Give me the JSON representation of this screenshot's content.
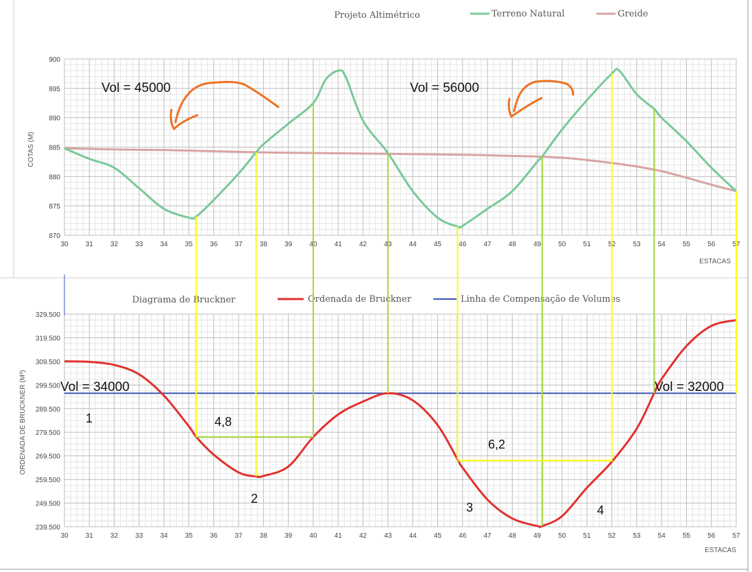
{
  "colors": {
    "terrain": "#79c89a",
    "greide": "#d9a3a3",
    "bruckner": "#e0312e",
    "compensation": "#3b55b5",
    "yellow": "#ffff00",
    "green_guide": "#a6d63a",
    "annotation_orange": "#f07020",
    "grid_major": "#bdbdbd",
    "grid_minor": "#e4e4e4"
  },
  "chart_data": [
    {
      "type": "line",
      "title": "Projeto Altimétrico",
      "xlabel": "ESTACAS",
      "ylabel": "COTAS (M)",
      "xlim": [
        30,
        57
      ],
      "ylim": [
        870,
        900
      ],
      "x_ticks": [
        "30",
        "31",
        "32",
        "33",
        "34",
        "35",
        "36",
        "37",
        "38",
        "39",
        "40",
        "41",
        "42",
        "43",
        "44",
        "45",
        "46",
        "47",
        "48",
        "49",
        "50",
        "51",
        "52",
        "53",
        "54",
        "55",
        "56",
        "57"
      ],
      "y_ticks": [
        "870",
        "875",
        "880",
        "885",
        "890",
        "895",
        "900"
      ],
      "legend_position": "top",
      "grid": true,
      "series": [
        {
          "name": "Terreno Natural",
          "x": [
            30,
            31,
            32,
            33,
            34,
            35,
            35.3,
            36,
            37,
            37.7,
            38,
            39,
            40,
            40.5,
            41,
            41.3,
            42,
            43,
            44,
            45,
            45.8,
            46,
            47,
            48,
            49,
            49.2,
            50,
            51,
            52,
            52.3,
            53,
            53.7,
            54,
            55,
            56,
            57
          ],
          "y": [
            884.8,
            883.0,
            881.5,
            878.0,
            874.5,
            873.0,
            873.2,
            876.0,
            880.5,
            884.1,
            885.5,
            889.0,
            892.5,
            896.5,
            898.0,
            897.0,
            889.5,
            884.0,
            877.5,
            873.0,
            871.5,
            871.6,
            874.5,
            877.5,
            882.5,
            883.4,
            888.0,
            893.0,
            897.5,
            898.0,
            894.0,
            891.5,
            890.0,
            886.0,
            881.5,
            877.5
          ]
        },
        {
          "name": "Greide",
          "x": [
            30,
            32,
            34,
            36,
            38,
            40,
            42,
            44,
            46,
            48,
            49,
            50,
            51,
            52,
            53,
            54,
            55,
            56,
            57
          ],
          "y": [
            884.8,
            884.6,
            884.5,
            884.3,
            884.1,
            884.0,
            883.9,
            883.8,
            883.7,
            883.5,
            883.4,
            883.2,
            882.8,
            882.3,
            881.7,
            880.9,
            879.8,
            878.6,
            877.5
          ]
        }
      ]
    },
    {
      "type": "line",
      "title": "Diagrama de Bruckner",
      "xlabel": "ESTACAS",
      "ylabel": "ORDENADA DE BRUCKNER (M³)",
      "xlim": [
        30,
        57
      ],
      "ylim": [
        239500,
        329500
      ],
      "x_ticks": [
        "30",
        "31",
        "32",
        "33",
        "34",
        "35",
        "36",
        "37",
        "38",
        "39",
        "40",
        "41",
        "42",
        "43",
        "44",
        "45",
        "46",
        "47",
        "48",
        "49",
        "50",
        "51",
        "52",
        "53",
        "54",
        "55",
        "56",
        "57"
      ],
      "y_ticks": [
        "239.500",
        "249.500",
        "259.500",
        "269.500",
        "279.500",
        "289.500",
        "299.500",
        "309.500",
        "319.500",
        "329.500"
      ],
      "legend_position": "top",
      "grid": true,
      "series": [
        {
          "name": "Ordenada de Bruckner",
          "x": [
            30,
            31,
            32,
            33,
            34,
            35,
            35.3,
            36,
            37,
            37.7,
            38,
            39,
            40,
            41,
            42,
            43,
            44,
            45,
            45.8,
            46,
            47,
            48,
            49,
            49.2,
            50,
            51,
            52,
            53,
            53.7,
            54,
            55,
            56,
            57
          ],
          "y": [
            309500,
            309300,
            308000,
            304000,
            295000,
            282000,
            277500,
            270000,
            262500,
            260800,
            261000,
            265000,
            277500,
            287000,
            292500,
            296000,
            293000,
            282500,
            268000,
            264500,
            251000,
            243000,
            239800,
            239800,
            244000,
            256000,
            267000,
            281000,
            296000,
            302000,
            316000,
            324500,
            327000
          ]
        },
        {
          "name": "Linha de Compensação de Volumes",
          "x": [
            30,
            57
          ],
          "y": [
            296000,
            296000
          ]
        }
      ]
    }
  ],
  "annotations": {
    "vol_top_left": "Vol = 45000",
    "vol_top_right": "Vol = 56000",
    "vol_bottom_left": "Vol = 34000",
    "vol_bottom_right": "Vol = 32000",
    "dist_a": "4,8",
    "dist_b": "6,2",
    "region_1": "1",
    "region_2": "2",
    "region_3": "3",
    "region_4": "4"
  }
}
